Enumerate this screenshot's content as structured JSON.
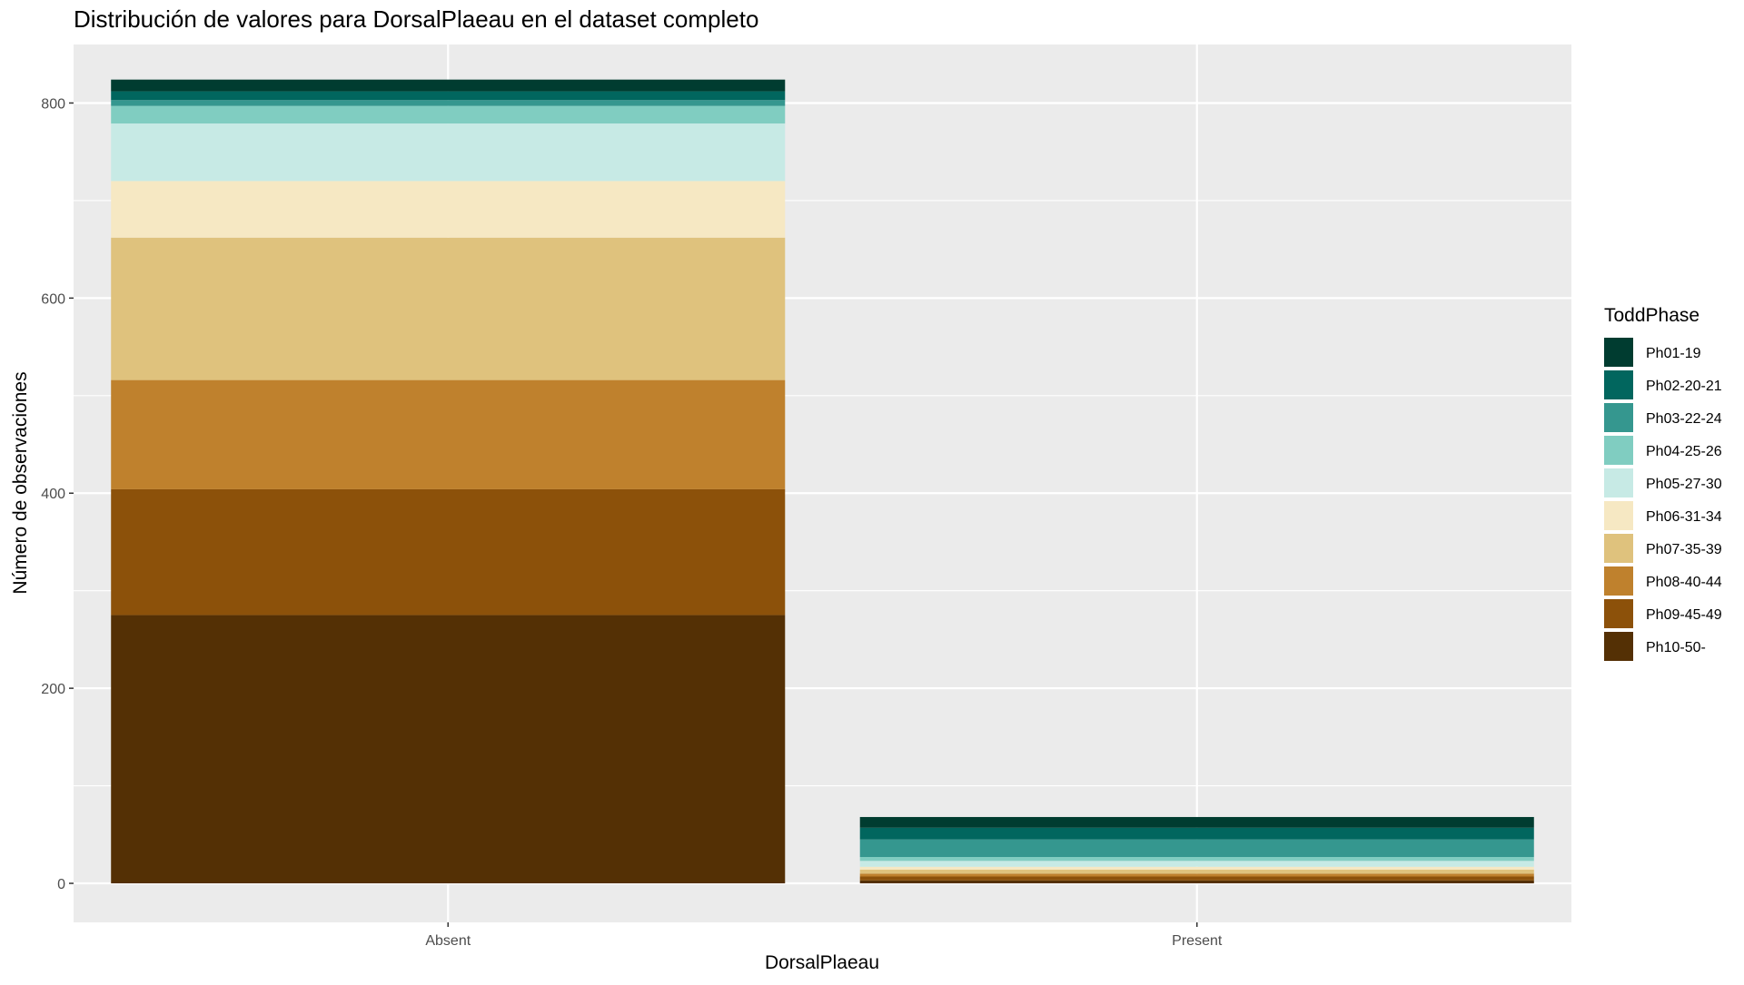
{
  "chart_data": {
    "type": "bar",
    "stacked": true,
    "title": "Distribución de valores para DorsalPlaeau en el dataset completo",
    "xlabel": "DorsalPlaeau",
    "ylabel": "Número de observaciones",
    "categories": [
      "Absent",
      "Present"
    ],
    "ylim": [
      -40,
      860
    ],
    "yticks": [
      0,
      200,
      400,
      600,
      800
    ],
    "grid": true,
    "legend": {
      "title": "ToddPhase",
      "position": "right"
    },
    "series": [
      {
        "name": "Ph01-19",
        "color": "#003C30",
        "values": [
          12,
          11
        ]
      },
      {
        "name": "Ph02-20-21",
        "color": "#01665E",
        "values": [
          9,
          12
        ]
      },
      {
        "name": "Ph03-22-24",
        "color": "#35978F",
        "values": [
          6,
          18
        ]
      },
      {
        "name": "Ph04-25-26",
        "color": "#80CDC1",
        "values": [
          18,
          4
        ]
      },
      {
        "name": "Ph05-27-30",
        "color": "#C7EAE5",
        "values": [
          59,
          6
        ]
      },
      {
        "name": "Ph06-31-34",
        "color": "#F6E8C3",
        "values": [
          58,
          3
        ]
      },
      {
        "name": "Ph07-35-39",
        "color": "#DFC27D",
        "values": [
          146,
          4
        ]
      },
      {
        "name": "Ph08-40-44",
        "color": "#BF812D",
        "values": [
          112,
          3
        ]
      },
      {
        "name": "Ph09-45-49",
        "color": "#8C510A",
        "values": [
          129,
          4
        ]
      },
      {
        "name": "Ph10-50-",
        "color": "#543005",
        "values": [
          275,
          3
        ]
      }
    ]
  }
}
